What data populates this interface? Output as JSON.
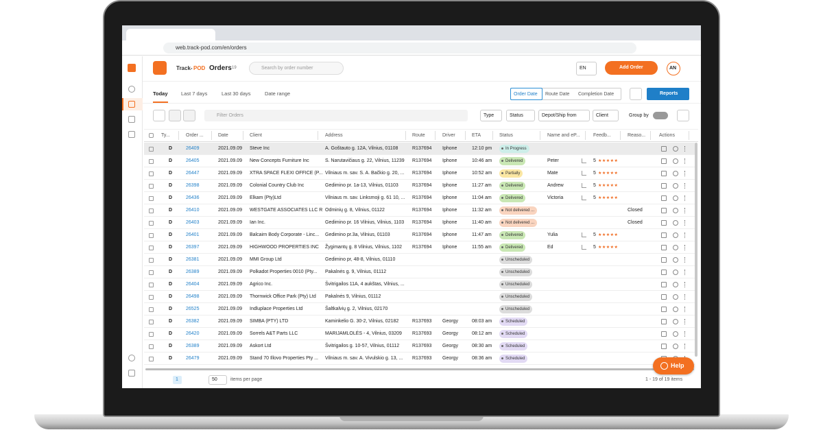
{
  "browser": {
    "url": "web.track-pod.com/en/orders"
  },
  "header": {
    "logo": [
      "Track-",
      "POD"
    ],
    "title": "Orders",
    "count": 19,
    "search": "Search by order number",
    "language": "EN",
    "add_button": "Add Order",
    "avatar": "AN"
  },
  "tabs": [
    "Today",
    "Last 7 days",
    "Last 30 days",
    "Date range"
  ],
  "date_modes": [
    "Order Date",
    "Route Date",
    "Completion Date"
  ],
  "reports": "Reports",
  "filter_placeholder": "Filter Orders",
  "filters": [
    "Type",
    "Status",
    "Depot/Ship from",
    "Client"
  ],
  "group_by": "Group by",
  "table": {
    "columns": [
      "Ty...",
      "Order ...",
      "Date",
      "Client",
      "Address",
      "Route",
      "Driver",
      "ETA",
      "Status",
      "Name and eP...",
      "Feedb...",
      "Reaso...",
      "Actions"
    ],
    "rows": [
      {
        "type": "D",
        "order": "26409",
        "date": "2021.09.09",
        "client": "Steve Inc",
        "address": "A. Goštauto g. 12A, Vilnius, 01108",
        "route": "R137694",
        "driver": "Iphone",
        "eta": "12:10 pm",
        "status": "In Progress",
        "status_color": "#cdeee9",
        "name": null,
        "rating": null,
        "reason": null
      },
      {
        "type": "D",
        "order": "26405",
        "date": "2021.09.09",
        "client": "New Concepts Furniture Inc",
        "address": "S. Narutavičiaus g. 22, Vilnius, 11239",
        "route": "R137694",
        "driver": "Iphone",
        "eta": "10:46 am",
        "status": "Delivered",
        "status_color": "#c9e7b4",
        "name": "Peter",
        "rating": 5,
        "reason": null
      },
      {
        "type": "D",
        "order": "26447",
        "date": "2021.09.09",
        "client": "XTRA SPACE FLEXI OFFICE (P...",
        "address": "Vilniaus m. sav. S. A. Bačkio g. 20, ...",
        "route": "R137694",
        "driver": "Iphone",
        "eta": "10:52 am",
        "status": "Partially",
        "status_color": "#fbe7a3",
        "name": "Mate",
        "rating": 5,
        "reason": null
      },
      {
        "type": "D",
        "order": "26398",
        "date": "2021.09.09",
        "client": "Colonial Country Club Inc",
        "address": "Gedimino pr. 1a-13, Vilnius, 01103",
        "route": "R137694",
        "driver": "Iphone",
        "eta": "11:27 am",
        "status": "Delivered",
        "status_color": "#c9e7b4",
        "name": "Andrew",
        "rating": 5,
        "reason": null
      },
      {
        "type": "D",
        "order": "26436",
        "date": "2021.09.09",
        "client": "Elkam (Pty)Ltd",
        "address": "Vilniaus m. sav. Linksmoji g. 61 10, ...",
        "route": "R137694",
        "driver": "Iphone",
        "eta": "11:04 am",
        "status": "Delivered",
        "status_color": "#c9e7b4",
        "name": "Victoria",
        "rating": 5,
        "reason": null
      },
      {
        "type": "D",
        "order": "26410",
        "date": "2021.09.09",
        "client": "WESTGATE ASSOCIATES LLC R",
        "address": "Odminių g. 8, Vilnius, 01122",
        "route": "R137694",
        "driver": "Iphone",
        "eta": "11:32 am",
        "status": "Not delivered ...",
        "status_color": "#f9d4bf",
        "name": null,
        "rating": null,
        "reason": "Closed"
      },
      {
        "type": "D",
        "order": "26403",
        "date": "2021.09.09",
        "client": "Ian Inc.",
        "address": "Gedimino pr. 16 Vilnius, Vilnius, 1103",
        "route": "R137694",
        "driver": "Iphone",
        "eta": "11:40 am",
        "status": "Not delivered ...",
        "status_color": "#f9d4bf",
        "name": null,
        "rating": null,
        "reason": "Closed"
      },
      {
        "type": "D",
        "order": "26401",
        "date": "2021.09.09",
        "client": "Balcairn Body Corporate - Linc...",
        "address": "Gedimino pr.3a, Vilnius, 01103",
        "route": "R137694",
        "driver": "Iphone",
        "eta": "11:47 am",
        "status": "Delivered",
        "status_color": "#c9e7b4",
        "name": "Yulia",
        "rating": 5,
        "reason": null
      },
      {
        "type": "D",
        "order": "26397",
        "date": "2021.09.09",
        "client": "HIGHWOOD PROPERTIES INC",
        "address": "Žygimantų g. 8 Vilnius, Vilnius, 1102",
        "route": "R137694",
        "driver": "Iphone",
        "eta": "11:55 am",
        "status": "Delivered",
        "status_color": "#c9e7b4",
        "name": "Ed",
        "rating": 5,
        "reason": null
      },
      {
        "type": "D",
        "order": "26381",
        "date": "2021.09.09",
        "client": "MMI Group Ltd",
        "address": "Gedimino pr, 48-8, Vilnius, 01110",
        "route": null,
        "driver": null,
        "eta": null,
        "status": "Unscheduled",
        "status_color": "#dcdcdc",
        "name": null,
        "rating": null,
        "reason": null
      },
      {
        "type": "D",
        "order": "26389",
        "date": "2021.09.09",
        "client": "Polkadot Properties 0010 (Pty...",
        "address": "Pakalnės g. 9, Vilnius, 01112",
        "route": null,
        "driver": null,
        "eta": null,
        "status": "Unscheduled",
        "status_color": "#dcdcdc",
        "name": null,
        "rating": null,
        "reason": null
      },
      {
        "type": "D",
        "order": "26404",
        "date": "2021.09.09",
        "client": "Agrico Inc.",
        "address": "Švitrigailos 11A, 4 aukštas, Vilnius, ...",
        "route": null,
        "driver": null,
        "eta": null,
        "status": "Unscheduled",
        "status_color": "#dcdcdc",
        "name": null,
        "rating": null,
        "reason": null
      },
      {
        "type": "D",
        "order": "26498",
        "date": "2021.09.09",
        "client": "Thornwick Office Park (Pty) Ltd",
        "address": "Pakalnės 9, Vilnius, 01112",
        "route": null,
        "driver": null,
        "eta": null,
        "status": "Unscheduled",
        "status_color": "#dcdcdc",
        "name": null,
        "rating": null,
        "reason": null
      },
      {
        "type": "D",
        "order": "26525",
        "date": "2021.09.09",
        "client": "Indluplace Properties Ltd",
        "address": "Šaltkalvių g. 2, Vilnius, 02170",
        "route": null,
        "driver": null,
        "eta": null,
        "status": "Unscheduled",
        "status_color": "#dcdcdc",
        "name": null,
        "rating": null,
        "reason": null
      },
      {
        "type": "D",
        "order": "26382",
        "date": "2021.09.09",
        "client": "SIMBA (PTY) LTD",
        "address": "Kaminkelio G. 30-2, Vilnius, 02182",
        "route": "R137693",
        "driver": "Georgy",
        "eta": "08:03 am",
        "status": "Scheduled",
        "status_color": "#e2daf4",
        "name": null,
        "rating": null,
        "reason": null
      },
      {
        "type": "D",
        "order": "26420",
        "date": "2021.09.09",
        "client": "Sorrels A&T Parts LLC",
        "address": "MARIJAMLOLĖS - 4, Vilnius, 03209",
        "route": "R137693",
        "driver": "Georgy",
        "eta": "08:12 am",
        "status": "Scheduled",
        "status_color": "#e2daf4",
        "name": null,
        "rating": null,
        "reason": null
      },
      {
        "type": "D",
        "order": "26389",
        "date": "2021.09.09",
        "client": "Askort Ltd",
        "address": "Švitrigailos g. 10-57, Vilnius, 01112",
        "route": "R137693",
        "driver": "Georgy",
        "eta": "08:30 am",
        "status": "Scheduled",
        "status_color": "#e2daf4",
        "name": null,
        "rating": null,
        "reason": null
      },
      {
        "type": "D",
        "order": "26479",
        "date": "2021.09.09",
        "client": "Stand 70 Illovo Properties Pty ...",
        "address": "Vilniaus m. sav. A. Vivulskio g. 13, ...",
        "route": "R137693",
        "driver": "Georgy",
        "eta": "08:36 am",
        "status": "Scheduled",
        "status_color": "#e2daf4",
        "name": null,
        "rating": null,
        "reason": null
      }
    ]
  },
  "footer": {
    "page": 1,
    "page_size": 50,
    "per_page_label": "items per page",
    "summary": "1 - 19 of 19 items"
  },
  "help": "Help"
}
